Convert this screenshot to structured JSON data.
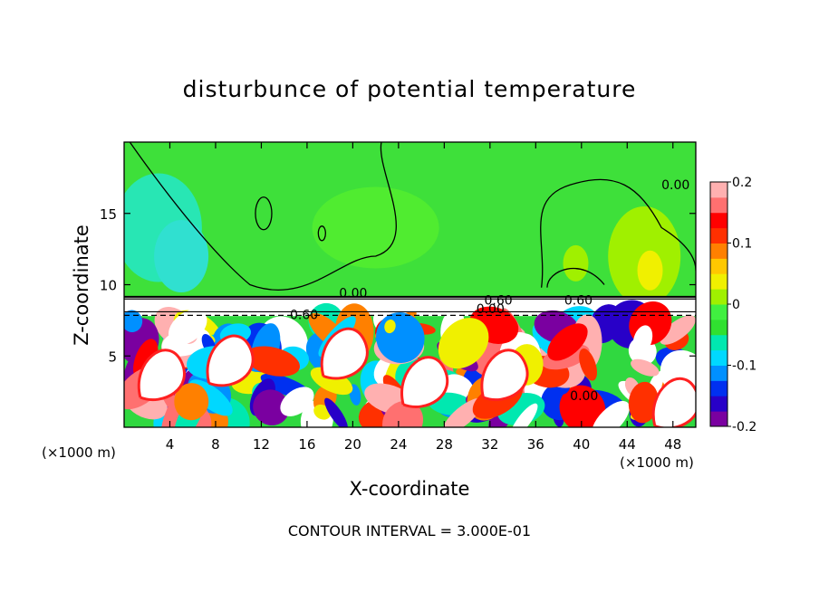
{
  "chart_data": {
    "type": "heatmap",
    "title": "disturbunce of potential temperature",
    "xlabel": "X-coordinate",
    "ylabel": "Z-coordinate",
    "x_unit_left": "(×1000 m)",
    "x_unit_right": "(×1000 m)",
    "x_range": [
      0,
      50
    ],
    "y_range": [
      0,
      20
    ],
    "x_ticks": [
      4,
      8,
      12,
      16,
      20,
      24,
      28,
      32,
      36,
      40,
      44,
      48
    ],
    "y_ticks": [
      5,
      10,
      15
    ],
    "colorbar": {
      "range": [
        -0.2,
        0.2
      ],
      "tick_labels": [
        "0.2",
        "0.1",
        "0",
        "-0.1",
        "-0.2"
      ],
      "tick_values": [
        0.2,
        0.1,
        0,
        -0.1,
        -0.2
      ],
      "colors": [
        "#7a00a0",
        "#2800c8",
        "#0030f0",
        "#0090ff",
        "#00d8ff",
        "#00e8b0",
        "#30e030",
        "#40f040",
        "#a0f000",
        "#f0f000",
        "#ffc800",
        "#ff8000",
        "#ff3000",
        "#ff0000",
        "#ff7070",
        "#ffb0b0"
      ]
    },
    "contour_labels": [
      "0.00",
      "0.00",
      "0.00",
      "0.00",
      "0.60",
      "0.60",
      "0.60"
    ],
    "footer": "CONTOUR INTERVAL = 3.000E-01"
  }
}
